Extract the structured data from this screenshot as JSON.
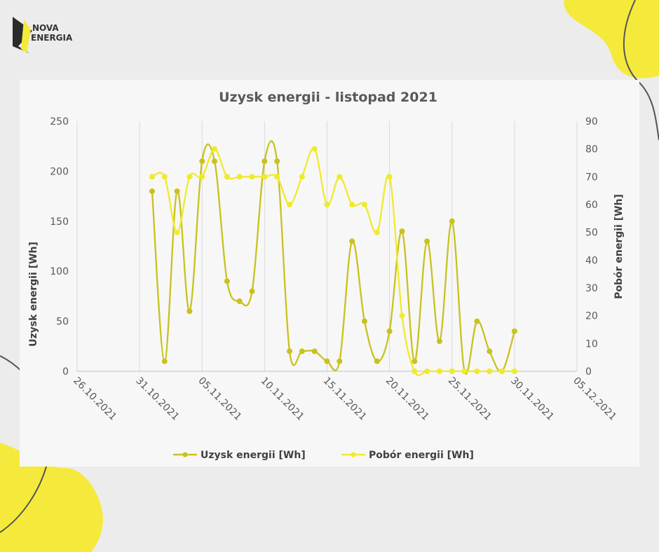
{
  "brand": {
    "logo_line1": "NOVA",
    "logo_line2": "ENERGIA"
  },
  "colors": {
    "background": "#ececec",
    "accent_yellow": "#f5ea3b",
    "series1": "#c9c21e",
    "series2": "#f0ea2c",
    "grid": "#d9d9d9",
    "text": "#595959"
  },
  "chart_data": {
    "type": "line",
    "title": "Uzysk energii - listopad 2021",
    "x_axis": {
      "type": "date",
      "ticks": [
        "26.10.2021",
        "31.10.2021",
        "05.11.2021",
        "10.11.2021",
        "15.11.2021",
        "20.11.2021",
        "25.11.2021",
        "30.11.2021",
        "05.12.2021"
      ]
    },
    "y_axis_left": {
      "label": "Uzysk energii [Wh]",
      "range": [
        0,
        250
      ],
      "ticks": [
        0,
        50,
        100,
        150,
        200,
        250
      ]
    },
    "y_axis_right": {
      "label": "Pobór energii [Wh]",
      "range": [
        0,
        90
      ],
      "ticks": [
        0,
        10,
        20,
        30,
        40,
        50,
        60,
        70,
        80,
        90
      ]
    },
    "grid": "vertical",
    "legend_position": "bottom",
    "series": [
      {
        "name": "Uzysk energii [Wh]",
        "axis": "left",
        "points": [
          [
            "01.11.2021",
            180
          ],
          [
            "02.11.2021",
            10
          ],
          [
            "03.11.2021",
            180
          ],
          [
            "04.11.2021",
            60
          ],
          [
            "05.11.2021",
            210
          ],
          [
            "06.11.2021",
            210
          ],
          [
            "07.11.2021",
            90
          ],
          [
            "08.11.2021",
            70
          ],
          [
            "09.11.2021",
            80
          ],
          [
            "10.11.2021",
            210
          ],
          [
            "11.11.2021",
            210
          ],
          [
            "12.11.2021",
            20
          ],
          [
            "13.11.2021",
            20
          ],
          [
            "14.11.2021",
            20
          ],
          [
            "15.11.2021",
            10
          ],
          [
            "16.11.2021",
            10
          ],
          [
            "17.11.2021",
            130
          ],
          [
            "18.11.2021",
            50
          ],
          [
            "19.11.2021",
            10
          ],
          [
            "20.11.2021",
            40
          ],
          [
            "21.11.2021",
            140
          ],
          [
            "22.11.2021",
            10
          ],
          [
            "23.11.2021",
            130
          ],
          [
            "24.11.2021",
            30
          ],
          [
            "25.11.2021",
            150
          ],
          [
            "26.11.2021",
            0
          ],
          [
            "27.11.2021",
            50
          ],
          [
            "28.11.2021",
            20
          ],
          [
            "29.11.2021",
            0
          ],
          [
            "30.11.2021",
            40
          ]
        ]
      },
      {
        "name": "Pobór energii [Wh]",
        "axis": "right",
        "points": [
          [
            "01.11.2021",
            70
          ],
          [
            "02.11.2021",
            70
          ],
          [
            "03.11.2021",
            50
          ],
          [
            "04.11.2021",
            70
          ],
          [
            "05.11.2021",
            70
          ],
          [
            "06.11.2021",
            80
          ],
          [
            "07.11.2021",
            70
          ],
          [
            "08.11.2021",
            70
          ],
          [
            "09.11.2021",
            70
          ],
          [
            "10.11.2021",
            70
          ],
          [
            "11.11.2021",
            70
          ],
          [
            "12.11.2021",
            60
          ],
          [
            "13.11.2021",
            70
          ],
          [
            "14.11.2021",
            80
          ],
          [
            "15.11.2021",
            60
          ],
          [
            "16.11.2021",
            70
          ],
          [
            "17.11.2021",
            60
          ],
          [
            "18.11.2021",
            60
          ],
          [
            "19.11.2021",
            50
          ],
          [
            "20.11.2021",
            70
          ],
          [
            "21.11.2021",
            20
          ],
          [
            "22.11.2021",
            0
          ],
          [
            "23.11.2021",
            0
          ],
          [
            "24.11.2021",
            0
          ],
          [
            "25.11.2021",
            0
          ],
          [
            "26.11.2021",
            0
          ],
          [
            "27.11.2021",
            0
          ],
          [
            "28.11.2021",
            0
          ],
          [
            "29.11.2021",
            0
          ],
          [
            "30.11.2021",
            0
          ]
        ]
      }
    ]
  }
}
